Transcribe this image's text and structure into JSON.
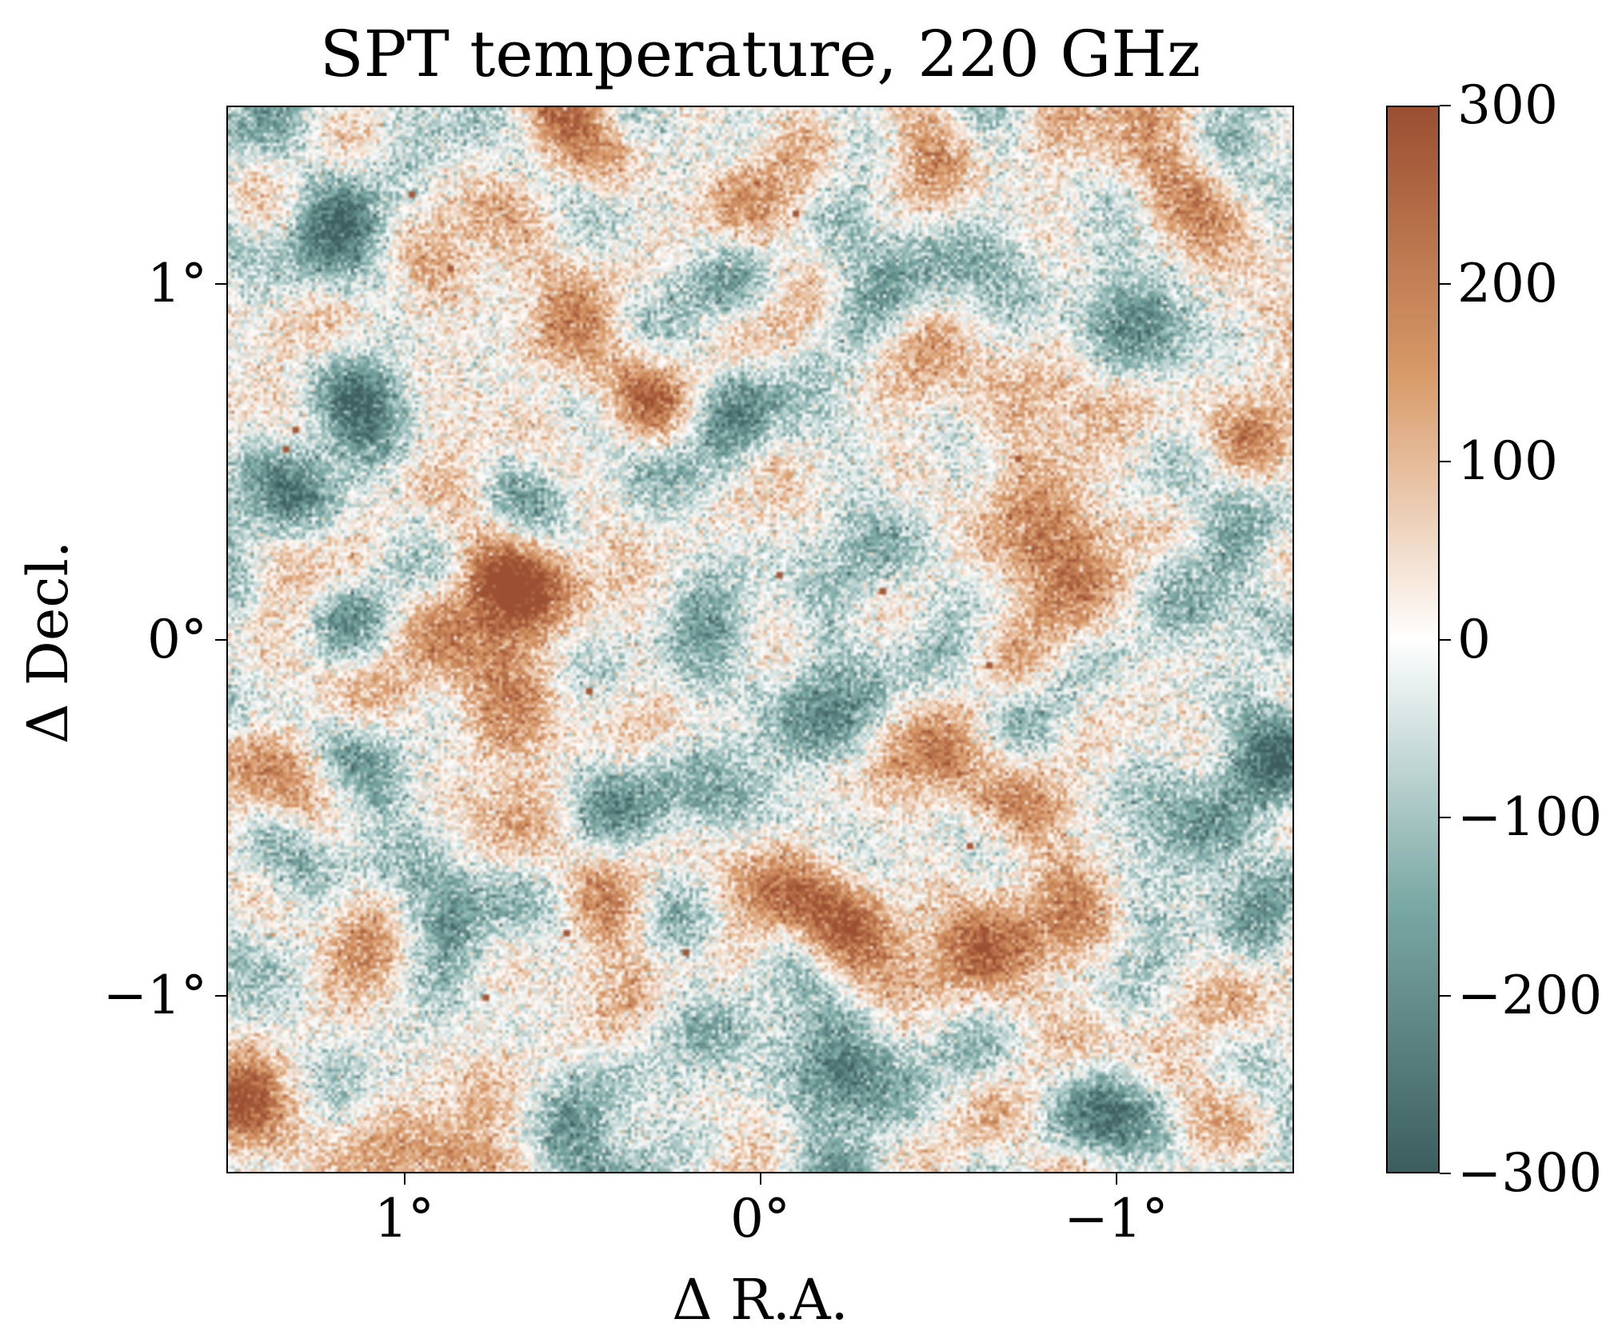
{
  "chart_data": {
    "type": "heatmap",
    "title": "SPT temperature, 220 GHz",
    "xlabel": "Δ R.A.",
    "ylabel": "Δ Decl.",
    "xlim": [
      1.5,
      -1.5
    ],
    "ylim": [
      -1.5,
      1.5
    ],
    "x_ticks": [
      {
        "value": 1,
        "label": "1°"
      },
      {
        "value": 0,
        "label": "0°"
      },
      {
        "value": -1,
        "label": "−1°"
      }
    ],
    "y_ticks": [
      {
        "value": 1,
        "label": "1°"
      },
      {
        "value": 0,
        "label": "0°"
      },
      {
        "value": -1,
        "label": "−1°"
      }
    ],
    "colorbar": {
      "range": [
        -300,
        300
      ],
      "ticks": [
        {
          "value": 300,
          "label": "300"
        },
        {
          "value": 200,
          "label": "200"
        },
        {
          "value": 100,
          "label": "100"
        },
        {
          "value": 0,
          "label": "0"
        },
        {
          "value": -100,
          "label": "−100"
        },
        {
          "value": -200,
          "label": "−200"
        },
        {
          "value": -300,
          "label": "−300"
        }
      ],
      "colors": {
        "negative_end": "#3d5e5f",
        "mid_negative": "#7aa8a4",
        "zero": "#ffffff",
        "mid_positive": "#d89a68",
        "positive_end": "#9c4f32"
      }
    },
    "grid": false
  }
}
